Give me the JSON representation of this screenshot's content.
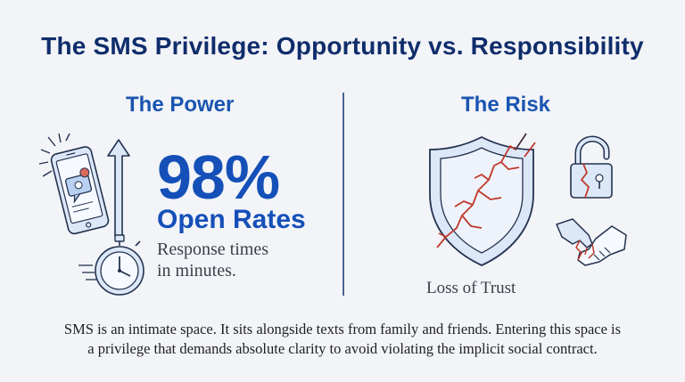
{
  "title": "The SMS Privilege: Opportunity vs. Responsibility",
  "power": {
    "heading": "The Power",
    "stat": "98%",
    "stat_label": "Open Rates",
    "sub_line1": "Response times",
    "sub_line2": "in minutes."
  },
  "risk": {
    "heading": "The Risk",
    "caption": "Loss of Trust"
  },
  "footer": {
    "line1": "SMS is an intimate space. It sits alongside texts from family and friends. Entering this space is",
    "line2": "a privilege that demands absolute clarity to avoid violating the implicit social contract."
  },
  "icons": {
    "phone": "smartphone-notification-icon",
    "arrow": "up-arrow-icon",
    "stopwatch": "stopwatch-icon",
    "shield": "cracked-shield-icon",
    "lock": "broken-padlock-icon",
    "handshake": "broken-handshake-icon"
  },
  "colors": {
    "title": "#0f2d6b",
    "accent": "#1550b8",
    "crack": "#c0392b",
    "icon_fill": "#dce8f8"
  }
}
